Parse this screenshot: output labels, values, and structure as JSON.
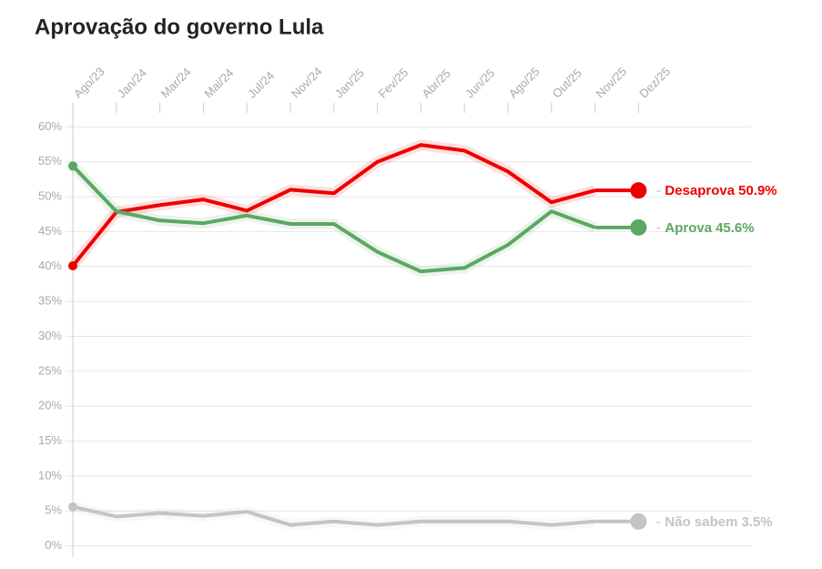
{
  "chart_data": {
    "type": "line",
    "title": "Aprovação do governo Lula",
    "categories": [
      "Ago/23",
      "Jan/24",
      "Mar/24",
      "Mai/24",
      "Jul/24",
      "Nov/24",
      "Jan/25",
      "Fev/25",
      "Abr/25",
      "Jun/25",
      "Ago/25",
      "Out/25",
      "Nov/25",
      "Dez/25"
    ],
    "ylim": [
      -2,
      62
    ],
    "yticks": [
      {
        "value": 0,
        "label": "0%"
      },
      {
        "value": 5,
        "label": "5%"
      },
      {
        "value": 10,
        "label": "10%"
      },
      {
        "value": 15,
        "label": "15%"
      },
      {
        "value": 20,
        "label": "20%"
      },
      {
        "value": 25,
        "label": "25%"
      },
      {
        "value": 30,
        "label": "30%"
      },
      {
        "value": 35,
        "label": "35%"
      },
      {
        "value": 40,
        "label": "40%"
      },
      {
        "value": 45,
        "label": "45%"
      },
      {
        "value": 50,
        "label": "50%"
      },
      {
        "value": 55,
        "label": "55%"
      },
      {
        "value": 60,
        "label": "60%"
      }
    ],
    "grid": true,
    "series": [
      {
        "name": "Desaprova",
        "color": "#ee0000",
        "values": [
          40.1,
          47.8,
          48.8,
          49.6,
          48.0,
          51.0,
          50.5,
          55.0,
          57.4,
          56.6,
          53.6,
          49.2,
          50.9,
          null
        ],
        "value_labels": [
          null,
          null,
          null,
          null,
          null,
          null,
          null,
          null,
          null,
          null,
          null,
          null,
          "50.9%",
          null
        ]
      },
      {
        "name": "Aprova",
        "color": "#5aa862",
        "values": [
          54.4,
          47.9,
          46.6,
          46.2,
          47.3,
          46.1,
          46.1,
          42.1,
          39.3,
          39.8,
          43.1,
          47.9,
          45.6,
          null
        ],
        "value_labels": [
          null,
          null,
          null,
          null,
          null,
          null,
          null,
          null,
          null,
          null,
          null,
          null,
          "45.6%",
          null
        ]
      },
      {
        "name": "Não sabem",
        "color": "#c4c4c4",
        "values": [
          5.6,
          4.2,
          4.7,
          4.3,
          4.9,
          3.0,
          3.5,
          3.0,
          3.5,
          3.5,
          3.5,
          3.0,
          3.5,
          null
        ],
        "value_labels": [
          null,
          null,
          null,
          null,
          null,
          null,
          null,
          null,
          null,
          null,
          null,
          null,
          "3.5%",
          null
        ]
      }
    ]
  }
}
